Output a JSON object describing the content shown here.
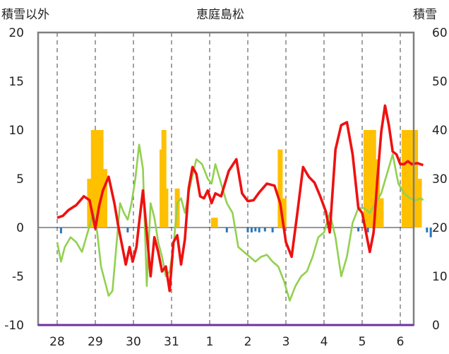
{
  "chart_data": {
    "type": "line",
    "title": "恵庭島松",
    "left_axis_label": "積雪以外",
    "right_axis_label": "積雪",
    "categories": [
      "28",
      "29",
      "30",
      "31",
      "1",
      "2",
      "3",
      "4",
      "5",
      "6"
    ],
    "ylim_left": [
      -10,
      20
    ],
    "yticks_left": [
      "20",
      "15",
      "10",
      "5",
      "0",
      "-5",
      "-10"
    ],
    "ylim_right": [
      0,
      60
    ],
    "yticks_right": [
      "60",
      "50",
      "40",
      "30",
      "20",
      "10",
      "0"
    ],
    "grid": "dashed vertical lines at each day",
    "colors": {
      "red_line": "#ee1111",
      "green_line": "#92d050",
      "orange_bars": "#ffc000",
      "blue_bars": "#2e75b6",
      "baseline": "#7030a0"
    },
    "series": [
      {
        "axis": "left",
        "color": "#ee1111",
        "x": [
          0.0,
          0.15,
          0.3,
          0.5,
          0.7,
          0.85,
          1.0,
          1.1,
          1.2,
          1.35,
          1.5,
          1.6,
          1.7,
          1.8,
          1.9,
          1.98,
          2.08,
          2.15,
          2.25,
          2.35,
          2.45,
          2.55,
          2.65,
          2.75,
          2.85,
          2.95,
          3.05,
          3.15,
          3.25,
          3.35,
          3.45,
          3.55,
          3.65,
          3.75,
          3.85,
          3.95,
          4.05,
          4.15,
          4.3,
          4.5,
          4.7,
          4.85,
          5.0,
          5.15,
          5.3,
          5.5,
          5.7,
          5.85,
          6.0,
          6.15,
          6.3,
          6.45,
          6.6,
          6.75,
          6.9,
          7.05,
          7.15,
          7.3,
          7.45,
          7.6,
          7.75,
          7.9,
          8.0,
          8.1,
          8.2,
          8.3,
          8.4,
          8.5,
          8.6,
          8.7,
          8.8,
          8.9,
          9.0,
          9.1,
          9.2,
          9.3,
          9.45,
          9.6
        ],
        "y": [
          1.0,
          1.2,
          1.8,
          2.3,
          3.2,
          2.8,
          -0.1,
          2.2,
          3.8,
          5.2,
          2.5,
          0.2,
          -1.8,
          -3.8,
          -2.0,
          -3.5,
          -2.0,
          0.5,
          3.8,
          -0.5,
          -5.0,
          -1.0,
          -2.5,
          -4.5,
          -4.0,
          -6.5,
          -1.5,
          -0.8,
          -3.8,
          -1.2,
          4.0,
          6.2,
          5.5,
          3.2,
          3.0,
          3.8,
          2.5,
          3.5,
          3.2,
          5.8,
          7.0,
          3.5,
          2.7,
          2.8,
          3.6,
          4.5,
          4.3,
          2.5,
          -1.5,
          -3.0,
          1.5,
          6.2,
          5.2,
          4.6,
          3.2,
          1.6,
          -0.5,
          8.0,
          10.5,
          10.8,
          7.5,
          2.0,
          1.5,
          -0.5,
          -2.5,
          -0.5,
          5.0,
          9.8,
          12.5,
          10.5,
          7.8,
          7.5,
          6.5,
          6.5,
          6.8,
          6.5,
          6.6,
          6.4
        ]
      },
      {
        "axis": "left",
        "color": "#92d050",
        "x": [
          0.0,
          0.1,
          0.2,
          0.35,
          0.5,
          0.65,
          0.8,
          0.95,
          1.05,
          1.15,
          1.25,
          1.35,
          1.45,
          1.55,
          1.65,
          1.75,
          1.85,
          1.95,
          2.05,
          2.15,
          2.25,
          2.35,
          2.45,
          2.55,
          2.65,
          2.75,
          2.85,
          2.95,
          3.05,
          3.15,
          3.25,
          3.35,
          3.5,
          3.65,
          3.8,
          3.95,
          4.05,
          4.15,
          4.3,
          4.45,
          4.6,
          4.75,
          4.9,
          5.05,
          5.2,
          5.35,
          5.5,
          5.65,
          5.8,
          5.95,
          6.1,
          6.25,
          6.4,
          6.55,
          6.7,
          6.85,
          7.0,
          7.15,
          7.3,
          7.45,
          7.6,
          7.75,
          7.9,
          8.05,
          8.2,
          8.35,
          8.5,
          8.65,
          8.8,
          8.95,
          9.1,
          9.25,
          9.4,
          9.55,
          9.6
        ],
        "y": [
          -1.5,
          -3.5,
          -2.0,
          -1.0,
          -1.5,
          -2.5,
          -0.5,
          1.5,
          -0.5,
          -4.0,
          -5.5,
          -7.0,
          -6.5,
          -2.0,
          2.5,
          1.5,
          0.8,
          2.5,
          5.0,
          8.5,
          6.0,
          -6.0,
          2.5,
          1.0,
          -1.5,
          -3.0,
          -5.0,
          -4.5,
          -2.0,
          2.5,
          3.0,
          1.5,
          4.5,
          7.0,
          6.5,
          5.0,
          4.5,
          6.5,
          4.5,
          2.5,
          1.5,
          -2.0,
          -2.5,
          -3.0,
          -3.5,
          -3.0,
          -2.8,
          -3.5,
          -4.0,
          -5.5,
          -7.5,
          -6.0,
          -5.0,
          -4.5,
          -3.0,
          -1.0,
          -0.5,
          1.5,
          -1.0,
          -5.0,
          -3.0,
          0.5,
          2.0,
          2.0,
          1.5,
          2.5,
          3.5,
          5.5,
          7.5,
          4.5,
          3.5,
          3.0,
          2.8,
          3.0,
          2.8
        ]
      },
      {
        "axis": "right",
        "color": "#ffc000",
        "type": "bar",
        "x": [
          0.85,
          0.95,
          1.05,
          1.15,
          1.25,
          2.75,
          2.8,
          2.85,
          3.15,
          4.1,
          4.15,
          5.85,
          5.95,
          8.1,
          8.2,
          8.3,
          8.4,
          8.5,
          9.1,
          9.2,
          9.3,
          9.4,
          9.5
        ],
        "y": [
          30,
          40,
          40,
          40,
          32,
          36,
          40,
          28,
          28,
          22,
          22,
          36,
          26,
          40,
          40,
          40,
          34,
          26,
          40,
          40,
          40,
          40,
          30
        ]
      },
      {
        "axis": "left",
        "color": "#2e75b6",
        "type": "bar",
        "x": [
          0.1,
          1.85,
          4.45,
          5.0,
          5.1,
          5.2,
          5.3,
          5.45,
          5.65,
          7.9,
          8.15,
          9.7,
          9.8
        ],
        "y": [
          -0.6,
          -0.5,
          -0.5,
          -0.5,
          -0.5,
          -0.4,
          -0.5,
          -0.4,
          -0.5,
          -0.4,
          -0.5,
          -0.5,
          -1.0
        ]
      }
    ]
  }
}
